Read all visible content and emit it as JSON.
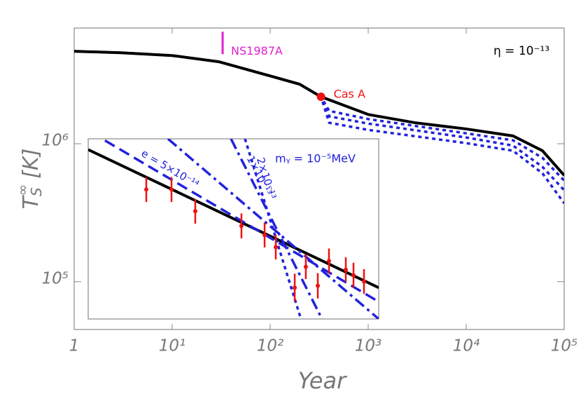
{
  "chart_data": [
    {
      "type": "line",
      "xlabel": "Year",
      "ylabel": {
        "base": "T",
        "sub": "S",
        "sup": "∞",
        "unit": "[K]"
      },
      "xscale": "log",
      "yscale": "log",
      "xlim": [
        1,
        100000
      ],
      "ylim": [
        45000,
        6900000
      ],
      "xticks": [
        1,
        {
          "value": 10,
          "label": "10¹"
        },
        {
          "value": 100,
          "label": "10²"
        },
        {
          "value": 1000,
          "label": "10³"
        },
        {
          "value": 10000,
          "label": "10⁴"
        },
        {
          "value": 100000,
          "label": "10⁵"
        }
      ],
      "yticks": [
        {
          "value": 100000,
          "label": "10⁵"
        },
        {
          "value": 1000000,
          "label": "10⁶"
        }
      ],
      "annotation": "η = 10⁻¹³",
      "series": [
        {
          "color": "#2222dd",
          "dash": "dotted",
          "x": [
            1,
            3,
            10,
            30,
            100,
            200,
            330,
            400,
            1000,
            10000,
            30000,
            60000,
            100000
          ],
          "values": [
            4680000,
            4570000,
            4360000,
            3930000,
            3100000,
            2700000,
            2190000,
            1420000,
            1260000,
            1010000,
            890000,
            610000,
            370000
          ]
        },
        {
          "color": "#2222dd",
          "dash": "dotted",
          "x": [
            1,
            3,
            10,
            30,
            100,
            200,
            330,
            400,
            1000,
            10000,
            30000,
            60000,
            100000
          ],
          "values": [
            4680000,
            4570000,
            4360000,
            3930000,
            3100000,
            2700000,
            2190000,
            1580000,
            1400000,
            1110000,
            970000,
            680000,
            460000
          ]
        },
        {
          "color": "#2222dd",
          "dash": "dotted",
          "x": [
            1,
            3,
            10,
            30,
            100,
            200,
            330,
            400,
            1000,
            10000,
            30000,
            60000,
            100000
          ],
          "values": [
            4680000,
            4570000,
            4360000,
            3930000,
            3100000,
            2700000,
            2190000,
            1730000,
            1510000,
            1190000,
            1060000,
            790000,
            540000
          ]
        },
        {
          "color": "#000000",
          "dash": "solid",
          "x": [
            1,
            3,
            10,
            30,
            100,
            200,
            330,
            1000,
            3000,
            10000,
            30000,
            60000,
            100000
          ],
          "values": [
            4680000,
            4570000,
            4360000,
            3930000,
            3100000,
            2700000,
            2190000,
            1630000,
            1420000,
            1280000,
            1140000,
            890000,
            590000
          ]
        }
      ],
      "markers": [
        {
          "label": "Cas A",
          "color": "#ee1111",
          "x": 330,
          "value": 2190000
        },
        {
          "label": "NS1987A",
          "color": "#e020d0",
          "x": 32.7,
          "value_range": [
            4460000,
            6490000
          ]
        }
      ]
    },
    {
      "type": "errorbar",
      "xscale": "log",
      "yscale": "log",
      "xlim": [
        1.39,
        1280
      ],
      "ylim": [
        54000,
        1090000
      ],
      "annotation": "mᵧ = 10⁻⁵MeV",
      "lines": [
        {
          "color": "#000000",
          "dash": "solid",
          "x": [
            1.39,
            1280
          ],
          "values": [
            910000,
            91000
          ]
        },
        {
          "label": "e = 5×10⁻¹⁴",
          "color": "#2222dd",
          "dash": "dashed",
          "x": [
            2.06,
            1280
          ],
          "values": [
            1060000,
            72000
          ]
        },
        {
          "color": "#2222dd",
          "dash": "dashdot",
          "x": [
            9.06,
            1280
          ],
          "values": [
            1090000,
            54000
          ]
        },
        {
          "label": "1×10⁻¹³",
          "color": "#2222dd",
          "dash": "dashdot",
          "x": [
            39.8,
            338
          ],
          "values": [
            1090000,
            54000
          ]
        },
        {
          "label": "2×10⁻¹³",
          "color": "#2222dd",
          "dash": "dotted",
          "x": [
            55.3,
            206
          ],
          "values": [
            1090000,
            54000
          ]
        }
      ],
      "points": {
        "color": "#ee1111",
        "x": [
          5.44,
          9.84,
          17.2,
          50.9,
          87.7,
          114,
          178,
          231,
          306,
          398,
          591,
          708,
          906
        ],
        "values": [
          468000,
          468000,
          326000,
          255000,
          219000,
          179000,
          91000,
          129000,
          94000,
          142000,
          123000,
          112000,
          101000
        ],
        "lower": [
          380000,
          380000,
          265000,
          207000,
          178000,
          146000,
          72000,
          105000,
          76000,
          115000,
          100000,
          91000,
          82000
        ],
        "upper": [
          576000,
          576000,
          400000,
          314000,
          269000,
          220000,
          115000,
          159000,
          116000,
          175000,
          151000,
          138000,
          124000
        ]
      }
    }
  ]
}
